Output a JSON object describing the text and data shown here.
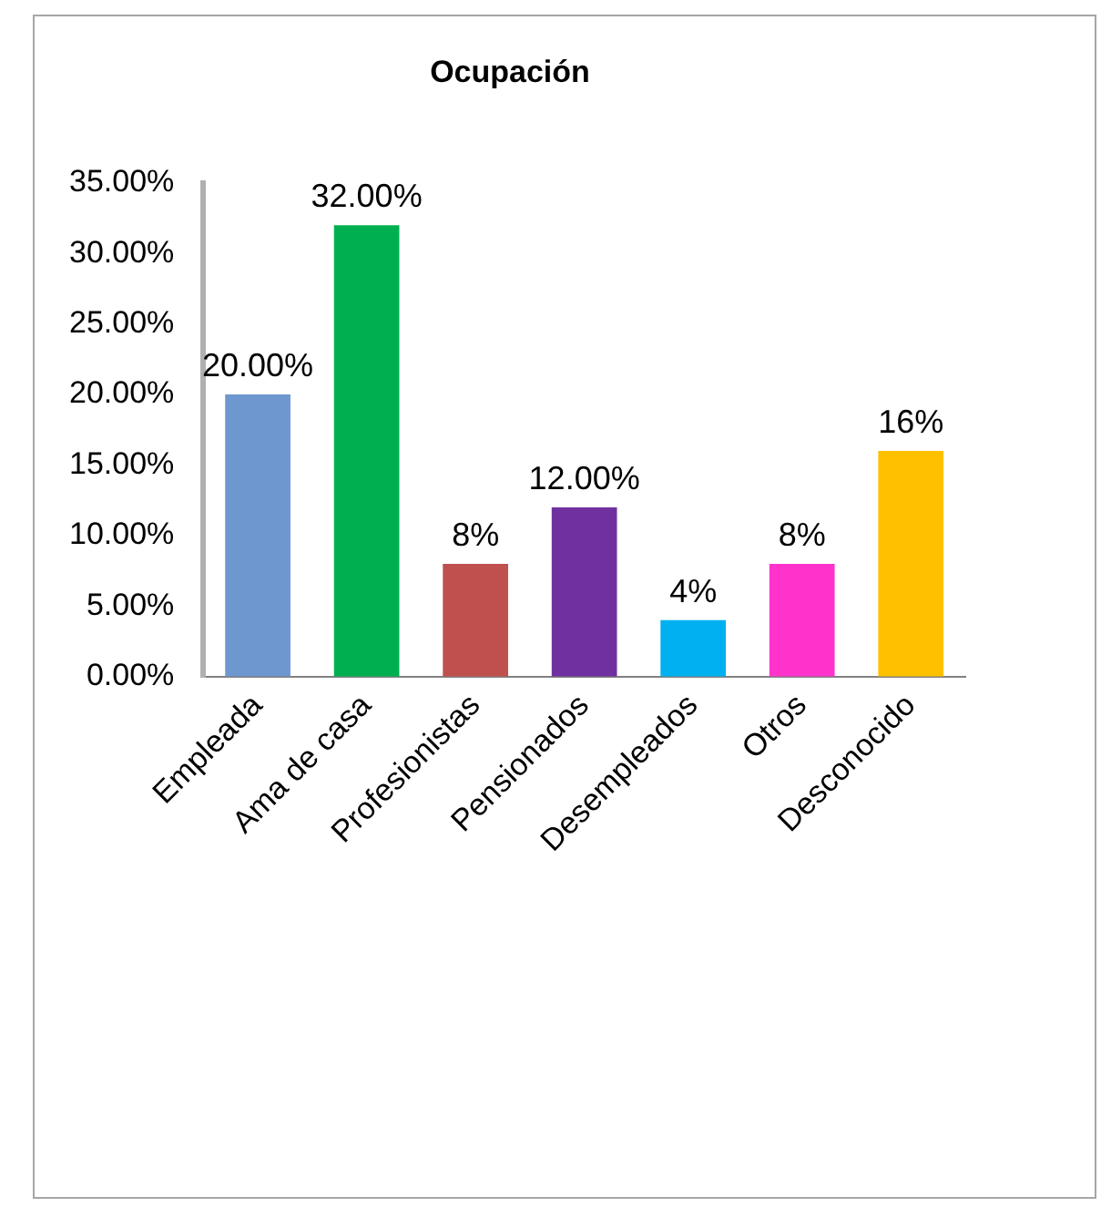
{
  "chart_data": {
    "type": "bar",
    "title": "Ocupación",
    "categories": [
      "Empleada",
      "Ama de casa",
      "Profesionistas",
      "Pensionados",
      "Desempleados",
      "Otros",
      "Desconocido"
    ],
    "values": [
      20,
      32,
      8,
      12,
      4,
      8,
      16
    ],
    "colors": [
      "#6f97cf",
      "#00b050",
      "#c0504d",
      "#7030a0",
      "#00b0f0",
      "#ff33cc",
      "#ffc000"
    ],
    "value_labels": [
      "20.00%",
      "32.00%",
      "8%",
      "12.00%",
      "4%",
      "8%",
      "16%"
    ],
    "ylim": [
      0,
      35
    ],
    "yticks": [
      {
        "value": 0,
        "label": "0.00%"
      },
      {
        "value": 5,
        "label": "5.00%"
      },
      {
        "value": 10,
        "label": "10.00%"
      },
      {
        "value": 15,
        "label": "15.00%"
      },
      {
        "value": 20,
        "label": "20.00%"
      },
      {
        "value": 25,
        "label": "25.00%"
      },
      {
        "value": 30,
        "label": "30.00%"
      },
      {
        "value": 35,
        "label": "35.00%"
      }
    ],
    "grid": false,
    "legend": false
  }
}
